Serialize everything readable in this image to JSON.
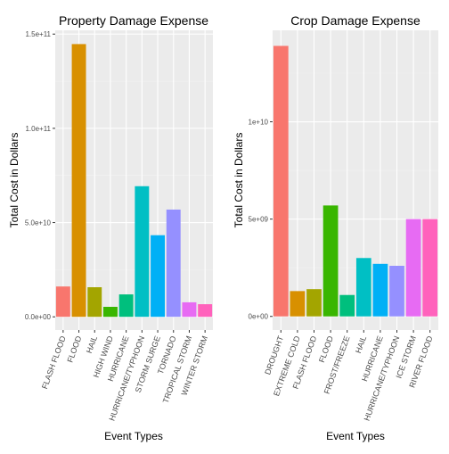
{
  "chart_data": [
    {
      "type": "bar",
      "title": "Property Damage Expense",
      "xlabel": "Event Types",
      "ylabel": "Total Cost in Dollars",
      "ylim": [
        -7000000000,
        152000000000
      ],
      "yticks": [
        {
          "value": 0,
          "label": "0.0e+00"
        },
        {
          "value": 50000000000,
          "label": "5.0e+10"
        },
        {
          "value": 100000000000,
          "label": "1.0e+11"
        },
        {
          "value": 150000000000,
          "label": "1.5e+11"
        }
      ],
      "grid": true,
      "legend": "none",
      "categories": [
        "FLASH FLOOD",
        "FLOOD",
        "HAIL",
        "HIGH WIND",
        "HURRICANE",
        "HURRICANE/TYPHOON",
        "STORM SURGE",
        "TORNADO",
        "TROPICAL STORM",
        "WINTER STORM"
      ],
      "values": [
        16100000000,
        144700000000,
        15700000000,
        5300000000,
        11900000000,
        69300000000,
        43300000000,
        56900000000,
        7700000000,
        6700000000
      ],
      "colors": [
        "#F8766D",
        "#D89000",
        "#A3A500",
        "#39B600",
        "#00BF7D",
        "#00BFC4",
        "#00B0F6",
        "#9590FF",
        "#E76BF3",
        "#FF62BC"
      ]
    },
    {
      "type": "bar",
      "title": "Crop Damage Expense",
      "xlabel": "Event Types",
      "ylabel": "Total Cost in Dollars",
      "ylim": [
        -700000000,
        14700000000
      ],
      "yticks": [
        {
          "value": 0,
          "label": "0e+00"
        },
        {
          "value": 5000000000,
          "label": "5e+09"
        },
        {
          "value": 10000000000,
          "label": "1e+10"
        }
      ],
      "grid": true,
      "legend": "none",
      "categories": [
        "DROUGHT",
        "EXTREME COLD",
        "FLASH FLOOD",
        "FLOOD",
        "FROST/FREEZE",
        "HAIL",
        "HURRICANE",
        "HURRICANE/TYPHOON",
        "ICE STORM",
        "RIVER FLOOD"
      ],
      "values": [
        13900000000,
        1300000000,
        1400000000,
        5700000000,
        1100000000,
        3000000000,
        2700000000,
        2600000000,
        5000000000,
        5000000000
      ],
      "colors": [
        "#F8766D",
        "#D89000",
        "#A3A500",
        "#39B600",
        "#00BF7D",
        "#00BFC4",
        "#00B0F6",
        "#9590FF",
        "#E76BF3",
        "#FF62BC"
      ]
    }
  ]
}
